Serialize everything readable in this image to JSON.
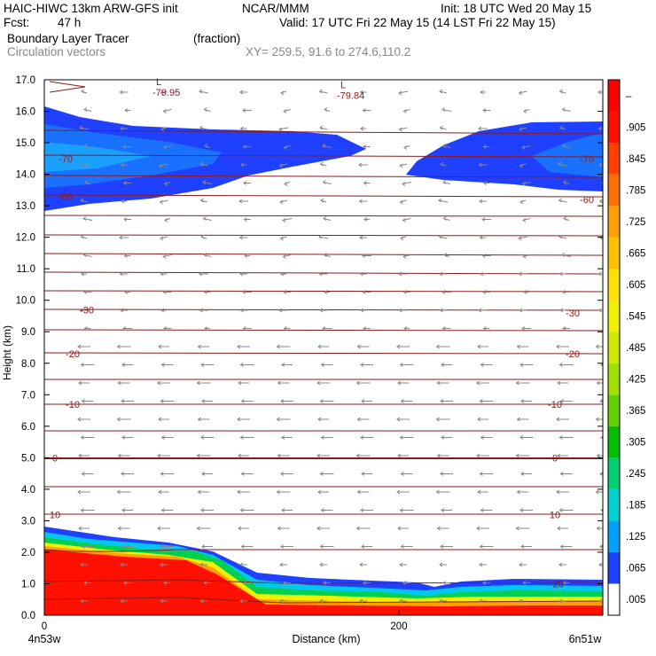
{
  "header": {
    "model_line": "HAIC-HIWC 13km ARW-GFS init",
    "org": "NCAR/MMM",
    "init": "Init: 18 UTC Wed 20 May 15",
    "fcst_label": "Fcst:",
    "fcst_value": "47 h",
    "valid": "Valid: 17 UTC Fri 22 May 15 (14 LST Fri 22 May 15)",
    "field1": "Boundary Layer Tracer",
    "field1_units": "(fraction)",
    "field2": "Circulation vectors",
    "xsect": "XY= 259.5, 91.6 to 274.6,110.2"
  },
  "chart_data": {
    "type": "heatmap",
    "xlabel": "Distance (km)",
    "ylabel": "Height (km)",
    "xlim": [
      0,
      315
    ],
    "ylim": [
      0,
      17
    ],
    "x_ticks": [
      0,
      200
    ],
    "x_tick_labels": [
      "0",
      "200"
    ],
    "x_end_labels": [
      "4n53w",
      "6n51w"
    ],
    "y_ticks": [
      0,
      1,
      2,
      3,
      4,
      5,
      6,
      7,
      8,
      9,
      10,
      11,
      12,
      13,
      14,
      15,
      16,
      17
    ],
    "y_tick_labels": [
      "0.0",
      "1.0",
      "2.0",
      "3.0",
      "4.0",
      "5.0",
      "6.0",
      "7.0",
      "8.0",
      "9.0",
      "10.0",
      "11.0",
      "12.0",
      "13.0",
      "14.0",
      "15.0",
      "16.0",
      "17.0"
    ],
    "colorbar": {
      "labels": [
        ".005",
        ".065",
        ".125",
        ".185",
        ".245",
        ".305",
        ".365",
        ".425",
        ".485",
        ".545",
        ".605",
        ".665",
        ".725",
        ".785",
        ".845",
        ".905",
        "–"
      ],
      "colors": [
        "#ffffff",
        "#2040ff",
        "#00a0ff",
        "#00d0d0",
        "#00d070",
        "#00c000",
        "#60d000",
        "#a0e000",
        "#d0e800",
        "#f0f000",
        "#ffe000",
        "#ffc000",
        "#ffa000",
        "#ff7000",
        "#ff4000",
        "#ff1000",
        "#ff0000"
      ]
    },
    "contour_labels": [
      {
        "x": 12,
        "y": 14.5,
        "text": "-70"
      },
      {
        "x": 306,
        "y": 14.5,
        "text": "-70"
      },
      {
        "x": 12,
        "y": 13.3,
        "text": "-60"
      },
      {
        "x": 306,
        "y": 13.2,
        "text": "-60"
      },
      {
        "x": 24,
        "y": 9.7,
        "text": "-30"
      },
      {
        "x": 298,
        "y": 9.6,
        "text": "-30"
      },
      {
        "x": 16,
        "y": 8.3,
        "text": "-20"
      },
      {
        "x": 298,
        "y": 8.3,
        "text": "-20"
      },
      {
        "x": 16,
        "y": 6.7,
        "text": "-10"
      },
      {
        "x": 288,
        "y": 6.7,
        "text": "-10"
      },
      {
        "x": 6,
        "y": 5.0,
        "text": "0"
      },
      {
        "x": 288,
        "y": 5.0,
        "text": "0"
      },
      {
        "x": 6,
        "y": 3.2,
        "text": "10"
      },
      {
        "x": 288,
        "y": 3.2,
        "text": "10"
      },
      {
        "x": 290,
        "y": 1.0,
        "text": "20"
      }
    ],
    "minima": [
      {
        "x": 68,
        "y": 16.8,
        "text": "-79.95"
      },
      {
        "x": 172,
        "y": 16.7,
        "text": "-79.84"
      }
    ],
    "minimum_marker": "L"
  }
}
